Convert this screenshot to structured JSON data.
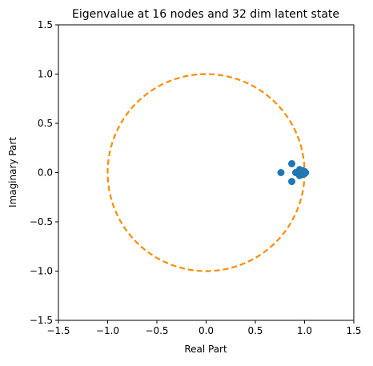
{
  "chart_data": {
    "type": "scatter",
    "title": "Eigenvalue at 16 nodes and 32 dim latent state",
    "xlabel": "Real Part",
    "ylabel": "Imaginary Part",
    "xlim": [
      -1.5,
      1.5
    ],
    "ylim": [
      -1.5,
      1.5
    ],
    "xticks": [
      -1.5,
      -1.0,
      -0.5,
      0.0,
      0.5,
      1.0,
      1.5
    ],
    "xtick_labels": [
      "−1.5",
      "−1.0",
      "−0.5",
      "0.0",
      "0.5",
      "1.0",
      "1.5"
    ],
    "yticks": [
      -1.5,
      -1.0,
      -0.5,
      0.0,
      0.5,
      1.0,
      1.5
    ],
    "ytick_labels": [
      "−1.5",
      "−1.0",
      "−0.5",
      "0.0",
      "0.5",
      "1.0",
      "1.5"
    ],
    "grid": false,
    "unit_circle": {
      "center": [
        0,
        0
      ],
      "radius": 1.0,
      "color": "#ff8c00",
      "style": "dashed"
    },
    "series": [
      {
        "color": "#1f77b4",
        "points": [
          [
            0.76,
            0.0
          ],
          [
            0.87,
            0.09
          ],
          [
            0.87,
            -0.09
          ],
          [
            0.91,
            0.0
          ],
          [
            0.95,
            0.03
          ],
          [
            0.95,
            -0.03
          ],
          [
            0.97,
            0.0
          ],
          [
            0.98,
            0.02
          ],
          [
            0.98,
            -0.02
          ],
          [
            0.99,
            0.0
          ],
          [
            1.0,
            0.01
          ],
          [
            1.0,
            -0.01
          ],
          [
            1.0,
            0.0
          ],
          [
            1.01,
            0.0
          ],
          [
            0.99,
            0.01
          ],
          [
            0.99,
            -0.01
          ]
        ]
      }
    ]
  }
}
